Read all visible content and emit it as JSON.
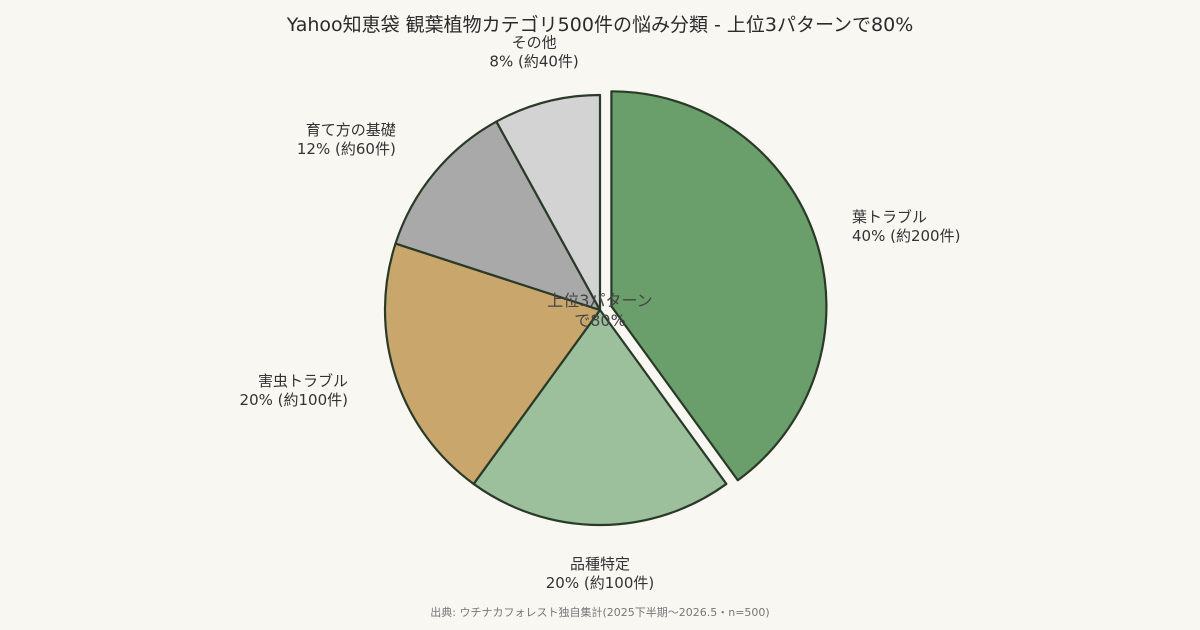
{
  "title": "Yahoo知恵袋 観葉植物カテゴリ500件の悩み分類 - 上位3パターンで80%",
  "source": "出典: ウチナカフォレスト独自集計(2025下半期〜2026.5・n=500)",
  "chart_data": {
    "type": "pie",
    "title": "Yahoo知恵袋 観葉植物カテゴリ500件の悩み分類 - 上位3パターンで80%",
    "center_label": [
      "上位3パターン",
      "で80%"
    ],
    "direction": "clockwise",
    "start": "top",
    "slices": [
      {
        "name": "葉トラブル",
        "value": 40,
        "count_label": "40% (約200件)",
        "color": "#6a9e6a",
        "exploded": true
      },
      {
        "name": "品種特定",
        "value": 20,
        "count_label": "20% (約100件)",
        "color": "#9bc09b",
        "exploded": false
      },
      {
        "name": "害虫トラブル",
        "value": 20,
        "count_label": "20% (約100件)",
        "color": "#c9a66b",
        "exploded": false
      },
      {
        "name": "育て方の基礎",
        "value": 12,
        "count_label": "12% (約60件)",
        "color": "#a9a9a9",
        "exploded": false
      },
      {
        "name": "その他",
        "value": 8,
        "count_label": "8% (約40件)",
        "color": "#d3d3d3",
        "exploded": false
      }
    ]
  }
}
